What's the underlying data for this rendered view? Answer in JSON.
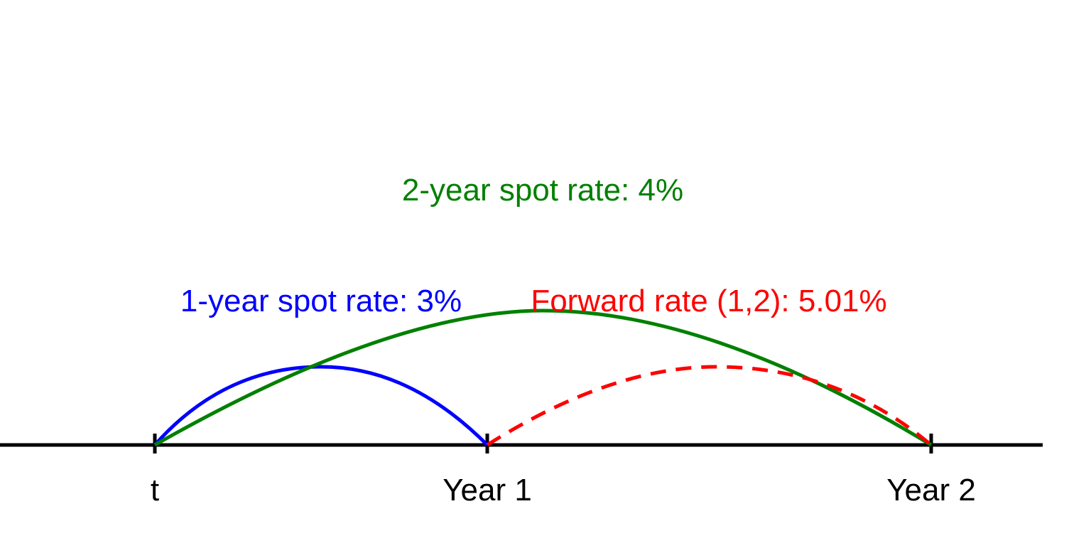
{
  "timeline": {
    "ticks": [
      {
        "label": "t"
      },
      {
        "label": "Year 1"
      },
      {
        "label": "Year 2"
      }
    ]
  },
  "arcs": {
    "one_year": {
      "label": "1-year spot rate: 3%",
      "color": "#0000ff",
      "style": "solid"
    },
    "two_year": {
      "label": "2-year spot rate: 4%",
      "color": "#008000",
      "style": "solid"
    },
    "forward": {
      "label": "Forward rate (1,2): 5.01%",
      "color": "#ff0000",
      "style": "dashed"
    }
  },
  "colors": {
    "axis": "#000000",
    "background": "#ffffff"
  }
}
